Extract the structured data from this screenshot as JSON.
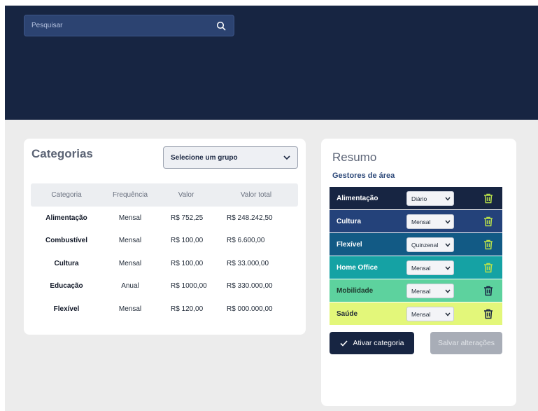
{
  "search": {
    "placeholder": "Pesquisar",
    "icon": "search-icon"
  },
  "categories": {
    "title": "Categorias",
    "group_select": "Selecione um grupo",
    "columns": [
      "Categoria",
      "Frequência",
      "Valor",
      "Valor total"
    ],
    "rows": [
      {
        "name": "Alimentação",
        "frequency": "Mensal",
        "value": "R$ 752,25",
        "total": "R$ 248.242,50"
      },
      {
        "name": "Combustível",
        "frequency": "Mensal",
        "value": "R$ 100,00",
        "total": "R$ 6.600,00"
      },
      {
        "name": "Cultura",
        "frequency": "Mensal",
        "value": "R$ 100,00",
        "total": "R$ 33.000,00"
      },
      {
        "name": "Educação",
        "frequency": "Anual",
        "value": "R$ 1000,00",
        "total": "R$ 330.000,00"
      },
      {
        "name": "Flexível",
        "frequency": "Mensal",
        "value": "R$ 120,00",
        "total": "R$ 000.000,00"
      }
    ]
  },
  "summary": {
    "title": "Resumo",
    "subtitle": "Gestores de área",
    "items": [
      {
        "label": "Alimentação",
        "frequency": "Diário",
        "bg": "#172542",
        "fg": "#ffffff",
        "trash": "#b8e04a"
      },
      {
        "label": "Cultura",
        "frequency": "Mensal",
        "bg": "#24427a",
        "fg": "#ffffff",
        "trash": "#b8e04a"
      },
      {
        "label": "Flexível",
        "frequency": "Quinzenal",
        "bg": "#125a85",
        "fg": "#ffffff",
        "trash": "#b8e04a"
      },
      {
        "label": "Home Office",
        "frequency": "Mensal",
        "bg": "#15a2a4",
        "fg": "#ffffff",
        "trash": "#b8e04a"
      },
      {
        "label": "Mobilidade",
        "frequency": "Mensal",
        "bg": "#5dd29e",
        "fg": "#1f3a2e",
        "trash": "#172542"
      },
      {
        "label": "Saúde",
        "frequency": "Mensal",
        "bg": "#e3f77a",
        "fg": "#1f2937",
        "trash": "#172542"
      }
    ],
    "activate_label": "Ativar categoria",
    "save_label": "Salvar alterações"
  }
}
